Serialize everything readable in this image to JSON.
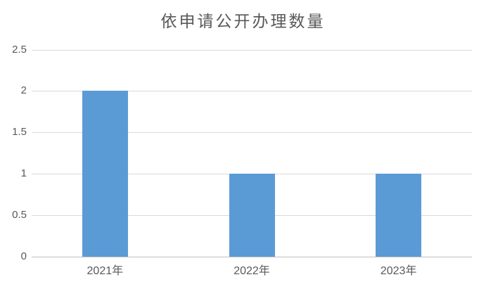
{
  "chart_data": {
    "type": "bar",
    "title": "依申请公开办理数量",
    "categories": [
      "2021年",
      "2022年",
      "2023年"
    ],
    "values": [
      2,
      1,
      1
    ],
    "xlabel": "",
    "ylabel": "",
    "ylim": [
      0,
      2.5
    ],
    "ytick_step": 0.5,
    "ytick_labels": [
      "0",
      "0.5",
      "1",
      "1.5",
      "2",
      "2.5"
    ],
    "grid": true,
    "legend_position": "none",
    "colors": {
      "bar": "#5b9bd5",
      "gridline": "#d9d9d9",
      "axis_line": "#bfbfbf",
      "text": "#595959",
      "background": "#ffffff"
    }
  }
}
